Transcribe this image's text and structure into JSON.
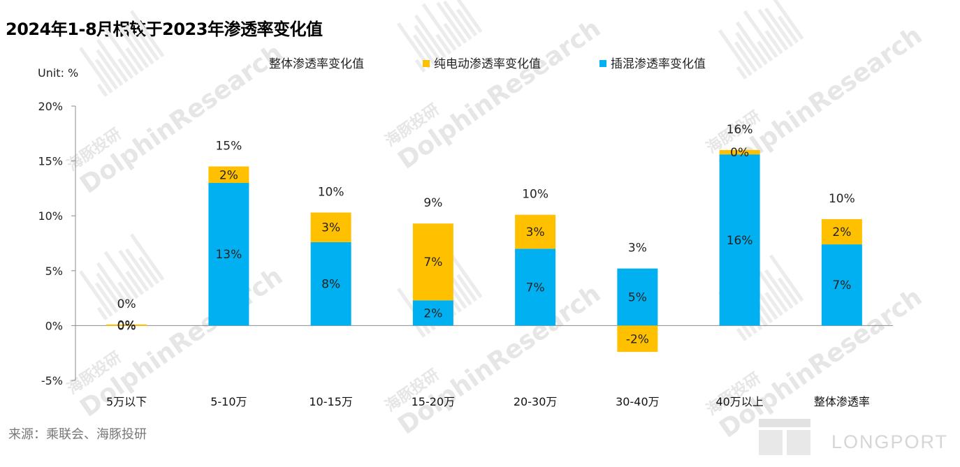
{
  "page": {
    "title": "2024年1-8月相较于2023年渗透率变化值",
    "source": "来源：乘联会、海豚投研"
  },
  "watermarks": {
    "brand_en": "DolphinResearch",
    "brand_cn": "海豚投研",
    "logo": "LONGPORT"
  },
  "chart_data": {
    "type": "bar",
    "stacked": true,
    "unit_label": "Unit: %",
    "categories": [
      "5万以下",
      "5-10万",
      "10-15万",
      "15-20万",
      "20-30万",
      "30-40万",
      "40万以上",
      "整体渗透率"
    ],
    "series": [
      {
        "name": "插混渗透率变化值",
        "color": "#00B0F0",
        "values": [
          0.0,
          13.0,
          7.6,
          2.3,
          7.0,
          5.2,
          15.6,
          7.4
        ]
      },
      {
        "name": "纯电动渗透率变化值",
        "color": "#FFC000",
        "values": [
          0.1,
          1.5,
          2.7,
          7.0,
          3.1,
          -2.4,
          0.4,
          2.3
        ]
      }
    ],
    "total_series": {
      "name": "整体渗透率变化值",
      "values": [
        0.1,
        14.5,
        10.3,
        9.3,
        10.1,
        2.8,
        16.0,
        9.7
      ]
    },
    "labels": {
      "phev": [
        "0%",
        "13%",
        "8%",
        "2%",
        "7%",
        "5%",
        "16%",
        "7%"
      ],
      "bev": [
        "0%",
        "2%",
        "3%",
        "7%",
        "3%",
        "-2%",
        "0%",
        "2%"
      ],
      "total": [
        "0%",
        "15%",
        "10%",
        "9%",
        "10%",
        "3%",
        "16%",
        "10%"
      ]
    },
    "yticks": [
      "20%",
      "15%",
      "10%",
      "5%",
      "0%",
      "-5%"
    ],
    "ylim": [
      -5,
      20
    ],
    "legend_position": "top",
    "grid": false
  }
}
